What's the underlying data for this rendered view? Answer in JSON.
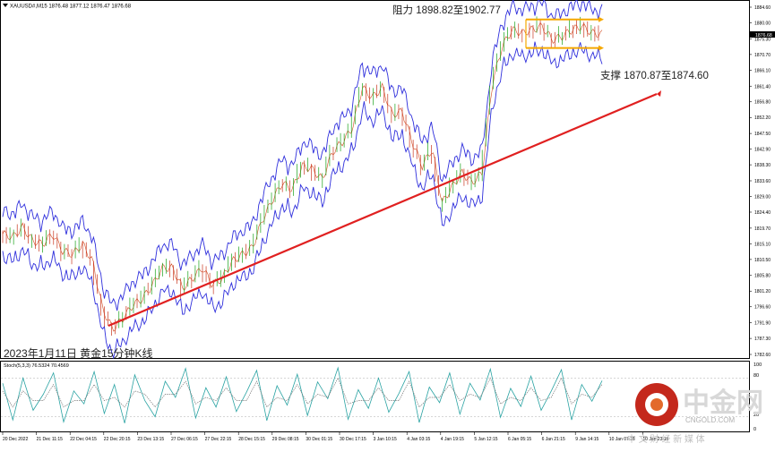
{
  "header": {
    "symbol_info": "XAUUSD#,M15  1876.48 1877.12 1876.47 1876.68"
  },
  "annotations": {
    "resistance": "阻力 1898.82至1902.77",
    "support": "支撑 1870.87至1874.60",
    "caption": "2023年1月11日 黄金15分钟K线"
  },
  "stoch_panel": {
    "label": "Stoch(5,3,3) 76.5324 70.4569",
    "scale": [
      "100",
      "80",
      "20",
      "0"
    ]
  },
  "watermark": {
    "brand": "中金网",
    "domain": "CNGOLD.COM",
    "slogan": "中 文 财 经 新 媒 体"
  },
  "colors": {
    "band": "#2f2fdc",
    "trendline": "#e02020",
    "range_box": "#f5a800",
    "candle_up": "#1aa31a",
    "candle_down": "#c9361f",
    "stoch_main": "#2aa3a3",
    "stoch_signal": "#777777"
  },
  "chart_data": {
    "type": "line",
    "price_label": "1876.68",
    "y_ticks": [
      "1884.60",
      "1880.00",
      "1875.30",
      "1870.70",
      "1866.10",
      "1861.40",
      "1856.80",
      "1852.20",
      "1847.50",
      "1842.90",
      "1838.30",
      "1833.60",
      "1829.00",
      "1824.40",
      "1819.70",
      "1815.10",
      "1810.50",
      "1805.80",
      "1801.20",
      "1796.60",
      "1791.90",
      "1787.30",
      "1782.60"
    ],
    "x_ticks": [
      "20 Dec 2022",
      "21 Dec 11:15",
      "22 Dec 04:15",
      "22 Dec 20:15",
      "23 Dec 13:15",
      "27 Dec 06:15",
      "27 Dec 22:15",
      "28 Dec 15:15",
      "29 Dec 08:15",
      "30 Dec 01:15",
      "30 Dec 17:15",
      "3 Jan 10:15",
      "4 Jan 03:15",
      "4 Jan 19:15",
      "5 Jan 12:15",
      "6 Jan 05:15",
      "6 Jan 21:15",
      "9 Jan 14:15",
      "10 Jan 07:15",
      "10 Jan 23:15"
    ],
    "ylim": [
      1782.6,
      1884.6
    ],
    "price_series": [
      1818,
      1817,
      1820,
      1816,
      1815,
      1818,
      1813,
      1812,
      1815,
      1810,
      1796,
      1790,
      1793,
      1797,
      1799,
      1803,
      1808,
      1808,
      1802,
      1805,
      1808,
      1803,
      1805,
      1810,
      1812,
      1814,
      1822,
      1828,
      1833,
      1831,
      1838,
      1837,
      1834,
      1842,
      1845,
      1849,
      1861,
      1858,
      1861,
      1853,
      1854,
      1845,
      1838,
      1843,
      1827,
      1832,
      1836,
      1833,
      1836,
      1862,
      1873,
      1878,
      1877,
      1878,
      1879,
      1875,
      1876,
      1878,
      1879,
      1877,
      1876.68
    ],
    "stoch_range": [
      0,
      100
    ],
    "stoch_main": [
      72,
      15,
      80,
      30,
      55,
      88,
      12,
      60,
      40,
      90,
      25,
      70,
      10,
      85,
      45,
      20,
      75,
      50,
      95,
      18,
      65,
      35,
      82,
      28,
      58,
      92,
      14,
      68,
      38,
      86,
      22,
      74,
      48,
      96,
      16,
      62,
      33,
      80,
      27,
      56,
      90,
      11,
      66,
      42,
      88,
      24,
      72,
      46,
      94,
      19,
      64,
      36,
      83,
      30,
      60,
      93,
      15,
      70,
      44,
      76
    ],
    "stoch_signal": [
      60,
      35,
      60,
      45,
      45,
      70,
      35,
      45,
      45,
      70,
      45,
      50,
      35,
      60,
      55,
      35,
      55,
      55,
      75,
      40,
      50,
      45,
      65,
      45,
      45,
      75,
      35,
      50,
      45,
      70,
      40,
      55,
      50,
      80,
      40,
      45,
      45,
      65,
      45,
      45,
      75,
      35,
      50,
      50,
      70,
      45,
      55,
      50,
      80,
      40,
      50,
      45,
      65,
      45,
      50,
      80,
      40,
      55,
      50,
      70
    ]
  }
}
